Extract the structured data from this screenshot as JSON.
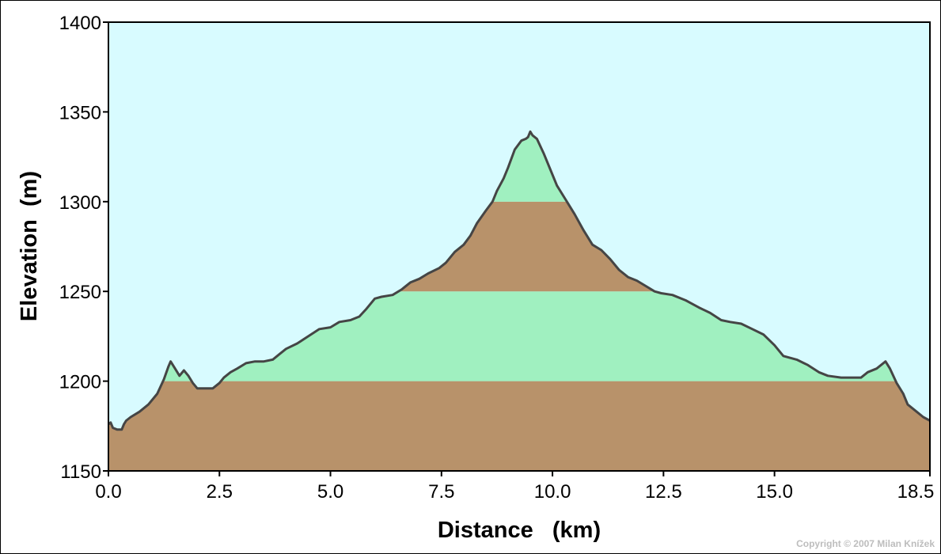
{
  "chart_data": {
    "type": "area",
    "title": "",
    "xlabel": "Distance   (km)",
    "ylabel": "Elevation  (m)",
    "xlim": [
      0,
      18.5
    ],
    "ylim": [
      1150,
      1400
    ],
    "x_ticks": [
      "0.0",
      "2.5",
      "5.0",
      "7.5",
      "10.0",
      "12.5",
      "15.0",
      "18.5"
    ],
    "x_tick_values": [
      0,
      2.5,
      5.0,
      7.5,
      10.0,
      12.5,
      15.0,
      18.5
    ],
    "y_ticks": [
      "1150",
      "1200",
      "1250",
      "1300",
      "1350",
      "1400"
    ],
    "y_tick_values": [
      1150,
      1200,
      1250,
      1300,
      1350,
      1400
    ],
    "grid": false,
    "band_interval": 50,
    "colors": {
      "background": "#d8fbff",
      "band_brown": "#b8926a",
      "band_green": "#a0f0c0",
      "line": "#454545"
    },
    "series": [
      {
        "x": [
          0.0,
          0.05,
          0.1,
          0.2,
          0.3,
          0.35,
          0.4,
          0.5,
          0.7,
          0.9,
          1.1,
          1.25,
          1.35,
          1.4,
          1.5,
          1.6,
          1.7,
          1.8,
          1.9,
          2.0,
          2.1,
          2.2,
          2.35,
          2.5,
          2.6,
          2.75,
          2.9,
          3.1,
          3.3,
          3.5,
          3.7,
          3.85,
          4.0,
          4.25,
          4.5,
          4.75,
          5.0,
          5.2,
          5.45,
          5.65,
          5.8,
          6.0,
          6.15,
          6.4,
          6.6,
          6.8,
          7.0,
          7.2,
          7.45,
          7.6,
          7.8,
          8.0,
          8.15,
          8.3,
          8.5,
          8.65,
          8.75,
          8.9,
          9.0,
          9.15,
          9.3,
          9.4,
          9.45,
          9.5,
          9.55,
          9.65,
          9.8,
          9.95,
          10.1,
          10.3,
          10.5,
          10.7,
          10.9,
          11.1,
          11.3,
          11.5,
          11.7,
          11.9,
          12.1,
          12.3,
          12.45,
          12.7,
          13.0,
          13.3,
          13.55,
          13.8,
          14.0,
          14.25,
          14.5,
          14.75,
          15.0,
          15.2,
          15.5,
          15.75,
          16.0,
          16.2,
          16.5,
          16.75,
          16.95,
          17.1,
          17.3,
          17.4,
          17.5,
          17.6,
          17.75,
          17.9,
          18.0,
          18.2,
          18.35,
          18.5
        ],
        "y": [
          1176,
          1177,
          1174,
          1173,
          1173,
          1176,
          1178,
          1180,
          1183,
          1187,
          1193,
          1201,
          1208,
          1211,
          1207,
          1203,
          1206,
          1203,
          1199,
          1196,
          1196,
          1196,
          1196,
          1199,
          1202,
          1205,
          1207,
          1210,
          1211,
          1211,
          1212,
          1215,
          1218,
          1221,
          1225,
          1229,
          1230,
          1233,
          1234,
          1236,
          1240,
          1246,
          1247,
          1248,
          1251,
          1255,
          1257,
          1260,
          1263,
          1266,
          1272,
          1276,
          1281,
          1288,
          1295,
          1300,
          1306,
          1313,
          1319,
          1329,
          1334,
          1335,
          1336,
          1339,
          1337,
          1335,
          1327,
          1318,
          1309,
          1301,
          1293,
          1284,
          1276,
          1273,
          1268,
          1262,
          1258,
          1256,
          1253,
          1250,
          1249,
          1248,
          1245,
          1241,
          1238,
          1234,
          1233,
          1232,
          1229,
          1226,
          1220,
          1214,
          1212,
          1209,
          1205,
          1203,
          1202,
          1202,
          1202,
          1205,
          1207,
          1209,
          1211,
          1207,
          1199,
          1193,
          1187,
          1183,
          1180,
          1178
        ]
      }
    ]
  },
  "copyright": "Copyright © 2007 Milan Knížek"
}
